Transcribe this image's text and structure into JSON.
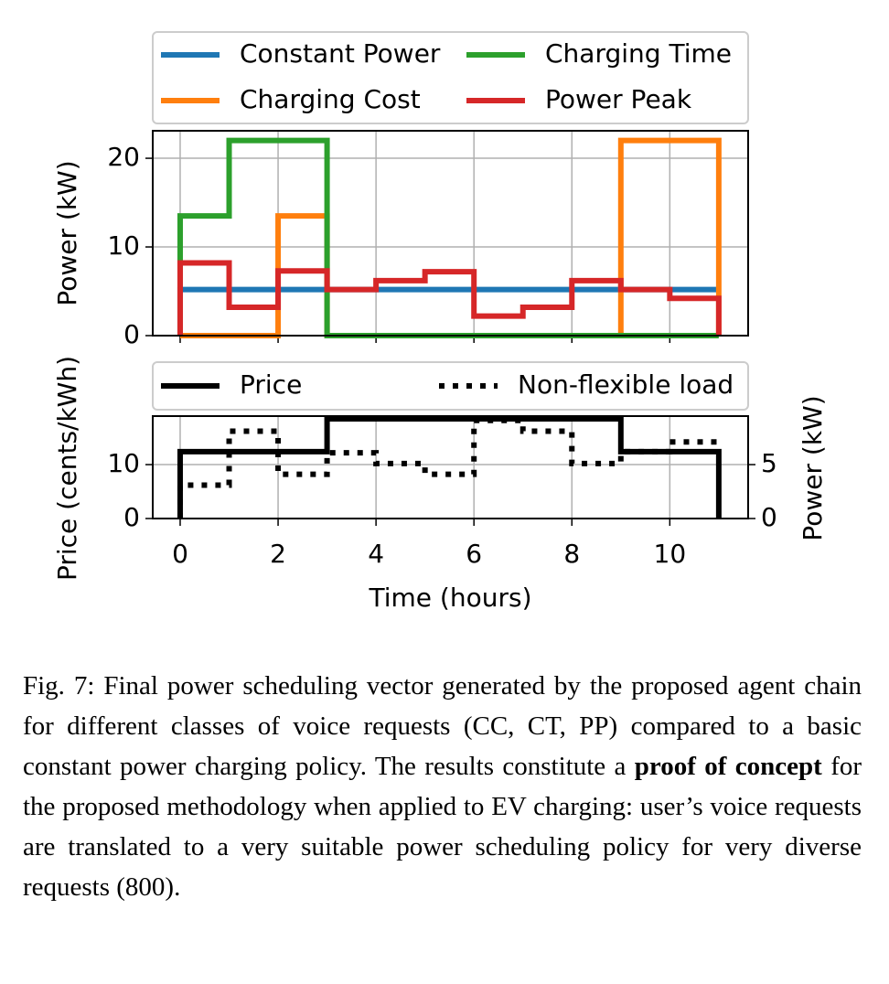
{
  "chart_data": [
    {
      "type": "line",
      "drawstyle": "steps-post",
      "ylabel": "Power (kW)",
      "x": [
        0,
        1,
        2,
        3,
        4,
        5,
        6,
        7,
        8,
        9,
        10,
        11
      ],
      "series": [
        {
          "name": "Constant Power",
          "color": "#1f77b4",
          "values": [
            5.2,
            5.2,
            5.2,
            5.2,
            5.2,
            5.2,
            5.2,
            5.2,
            5.2,
            5.2,
            5.2,
            5.2
          ]
        },
        {
          "name": "Charging Cost",
          "color": "#ff7f0e",
          "values": [
            0,
            0,
            13.5,
            0,
            0,
            0,
            0,
            0,
            0,
            22,
            22,
            0
          ]
        },
        {
          "name": "Charging Time",
          "color": "#2ca02c",
          "values": [
            13.5,
            22,
            22,
            0,
            0,
            0,
            0,
            0,
            0,
            0,
            0,
            0
          ]
        },
        {
          "name": "Power Peak",
          "color": "#d62728",
          "values": [
            8.2,
            3.2,
            7.3,
            5.2,
            6.2,
            7.2,
            2.2,
            3.2,
            6.2,
            5.2,
            4.2,
            0
          ]
        }
      ],
      "xlim": [
        -0.56,
        11.6
      ],
      "ylim": [
        0,
        23.1
      ],
      "xticks": [
        0,
        2,
        4,
        6,
        8,
        10
      ],
      "show_xtick_labels": false,
      "yticks": [
        0,
        10,
        20
      ],
      "grid": true,
      "legend_loc": "upper center",
      "legend_columns": 2
    },
    {
      "type": "line",
      "drawstyle": "steps-post",
      "xlabel": "Time (hours)",
      "ylabel": "Price (cents/kWh)",
      "y2label": "Power (kW)",
      "x": [
        0,
        1,
        2,
        3,
        4,
        5,
        6,
        7,
        8,
        9,
        10,
        11
      ],
      "series": [
        {
          "name": "Price",
          "color": "#000000",
          "dash": "solid",
          "values": [
            12.4,
            12.4,
            12.4,
            18.5,
            18.5,
            18.5,
            18.5,
            18.5,
            18.5,
            12.4,
            12.4,
            0
          ]
        },
        {
          "name": "Non-flexible load",
          "color": "#000000",
          "dash": "dotted",
          "axis": "y2",
          "values": [
            3.1,
            8.1,
            4.1,
            6.1,
            5.1,
            4.1,
            9.1,
            8.1,
            5.1,
            6.2,
            7.1,
            7.1
          ]
        }
      ],
      "xlim": [
        -0.56,
        11.6
      ],
      "ylim": [
        0,
        19
      ],
      "y2lim": [
        0,
        9.5
      ],
      "xticks": [
        0,
        2,
        4,
        6,
        8,
        10
      ],
      "show_xtick_labels": true,
      "yticks": [
        0,
        10
      ],
      "y2ticks": [
        0,
        5
      ],
      "grid": true,
      "legend_loc": "upper center",
      "legend_columns": 2
    }
  ],
  "caption": {
    "label": "Fig. 7:",
    "text_before": "Final power scheduling vector generated by the proposed agent chain for different classes of voice requests (CC, CT, PP) compared to a basic constant power charging policy. The results constitute a",
    "bold": "proof of concept",
    "text_after": "for the proposed methodology when applied to EV charging: user’s voice requests are translated to a very suitable power scheduling policy for very diverse requests (800)."
  }
}
